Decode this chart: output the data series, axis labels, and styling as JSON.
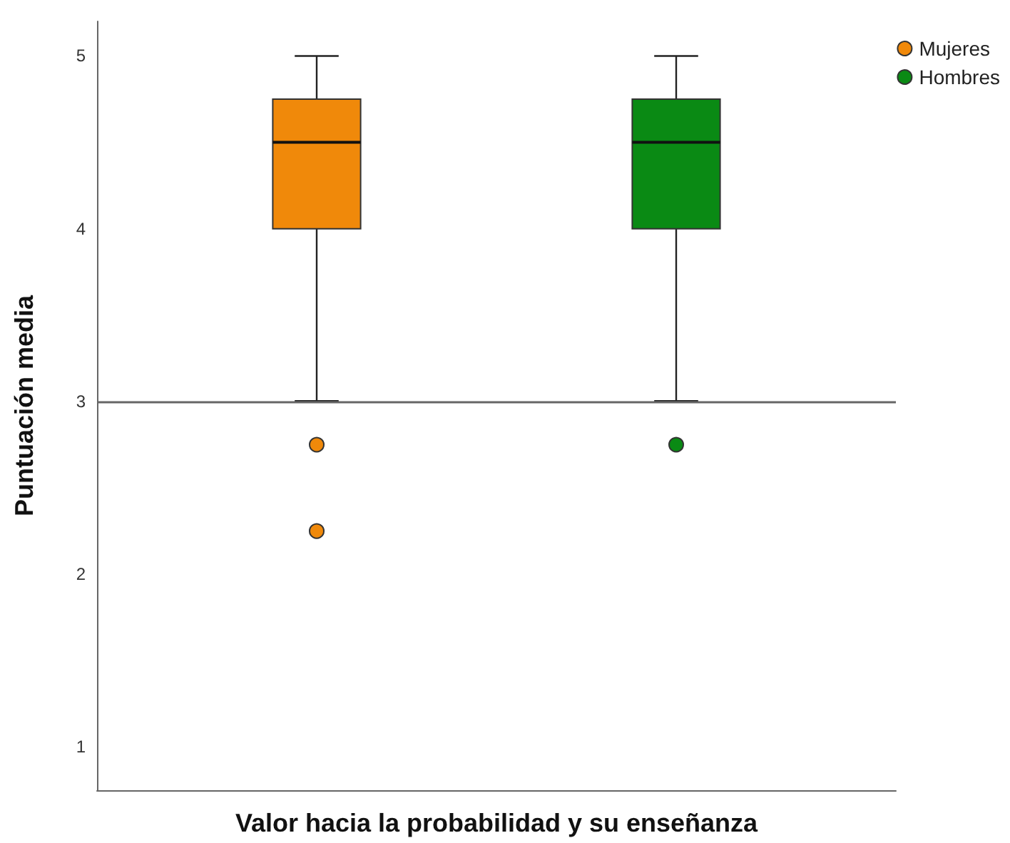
{
  "chart_data": {
    "type": "box",
    "xlabel": "Valor hacia la probabilidad y su enseñanza",
    "ylabel": "Puntuación media",
    "categories": [
      null
    ],
    "series": [
      {
        "name": "Mujeres",
        "color": "#f0890a",
        "boxes": [
          {
            "low": 3,
            "q1": 4,
            "median": 4.5,
            "q3": 4.75,
            "high": 5,
            "outliers": [
              2.75,
              2.25
            ]
          }
        ]
      },
      {
        "name": "Hombres",
        "color": "#0a8a14",
        "boxes": [
          {
            "low": 3,
            "q1": 4,
            "median": 4.5,
            "q3": 4.75,
            "high": 5,
            "outliers": [
              2.75
            ]
          }
        ]
      }
    ],
    "ylim": [
      0.75,
      5.2
    ],
    "yticks": [
      1,
      2,
      3,
      4,
      5
    ],
    "grid": false,
    "legend": "top right",
    "marker": "circle",
    "ref_lines": [
      {
        "axis": "y",
        "value": 3,
        "color": "#666666"
      }
    ]
  }
}
